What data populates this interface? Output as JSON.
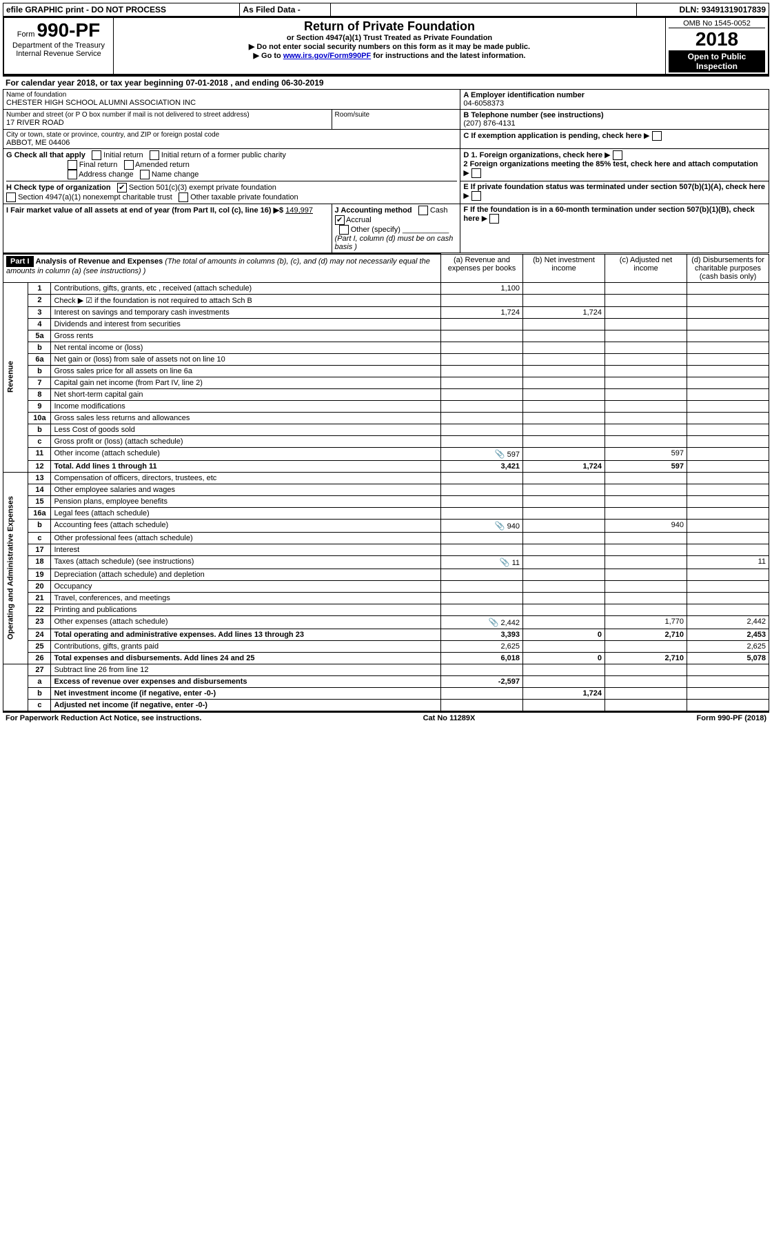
{
  "topbar": {
    "efile": "efile GRAPHIC print - DO NOT PROCESS",
    "asfiled": "As Filed Data -",
    "dln_label": "DLN:",
    "dln": "93491319017839"
  },
  "header": {
    "form_prefix": "Form",
    "form_number": "990-PF",
    "dept": "Department of the Treasury",
    "irs": "Internal Revenue Service",
    "title": "Return of Private Foundation",
    "subtitle": "or Section 4947(a)(1) Trust Treated as Private Foundation",
    "warn1": "▶ Do not enter social security numbers on this form as it may be made public.",
    "warn2_pre": "▶ Go to ",
    "warn2_link": "www.irs.gov/Form990PF",
    "warn2_post": " for instructions and the latest information.",
    "omb": "OMB No 1545-0052",
    "year": "2018",
    "open": "Open to Public Inspection"
  },
  "calyear": {
    "text_a": "For calendar year 2018, or tax year beginning ",
    "begin": "07-01-2018",
    "text_b": " , and ending ",
    "end": "06-30-2019"
  },
  "entity": {
    "name_label": "Name of foundation",
    "name": "CHESTER HIGH SCHOOL ALUMNI ASSOCIATION INC",
    "addr_label": "Number and street (or P O  box number if mail is not delivered to street address)",
    "addr": "17 RIVER ROAD",
    "room_label": "Room/suite",
    "city_label": "City or town, state or province, country, and ZIP or foreign postal code",
    "city": "ABBOT, ME  04406",
    "a_label": "A Employer identification number",
    "ein": "04-6058373",
    "b_label": "B Telephone number (see instructions)",
    "phone": "(207) 876-4131",
    "c_label": "C If exemption application is pending, check here"
  },
  "boxG": {
    "label": "G Check all that apply",
    "o1": "Initial return",
    "o2": "Initial return of a former public charity",
    "o3": "Final return",
    "o4": "Amended return",
    "o5": "Address change",
    "o6": "Name change"
  },
  "boxH": {
    "label": "H Check type of organization",
    "o1": "Section 501(c)(3) exempt private foundation",
    "o2": "Section 4947(a)(1) nonexempt charitable trust",
    "o3": "Other taxable private foundation"
  },
  "boxD": {
    "d1": "D 1. Foreign organizations, check here",
    "d2": "2  Foreign organizations meeting the 85% test, check here and attach computation",
    "e": "E  If private foundation status was terminated under section 507(b)(1)(A), check here",
    "f": "F  If the foundation is in a 60-month termination under section 507(b)(1)(B), check here"
  },
  "boxI": {
    "label": "I Fair market value of all assets at end of year (from Part II, col  (c), line 16)  ▶$ ",
    "val": "149,997"
  },
  "boxJ": {
    "label": "J Accounting method",
    "cash": "Cash",
    "accrual": "Accrual",
    "other": "Other (specify)",
    "note": "(Part I, column (d) must be on cash basis )"
  },
  "part1": {
    "tag": "Part I",
    "title": "Analysis of Revenue and Expenses",
    "note": " (The total of amounts in columns (b), (c), and (d) may not necessarily equal the amounts in column (a) (see instructions) )",
    "colA": "(a)   Revenue and expenses per books",
    "colB": "(b)   Net investment income",
    "colC": "(c)   Adjusted net income",
    "colD": "(d)   Disbursements for charitable purposes (cash basis only)"
  },
  "rev_label": "Revenue",
  "exp_label": "Operating and Administrative Expenses",
  "rows": {
    "r1": {
      "n": "1",
      "d": "Contributions, gifts, grants, etc , received (attach schedule)",
      "a": "1,100"
    },
    "r2": {
      "n": "2",
      "d": "Check ▶ ☑ if the foundation is not required to attach Sch  B"
    },
    "r3": {
      "n": "3",
      "d": "Interest on savings and temporary cash investments",
      "a": "1,724",
      "b": "1,724"
    },
    "r4": {
      "n": "4",
      "d": "Dividends and interest from securities"
    },
    "r5a": {
      "n": "5a",
      "d": "Gross rents"
    },
    "r5b": {
      "n": "b",
      "d": "Net rental income or (loss)"
    },
    "r6a": {
      "n": "6a",
      "d": "Net gain or (loss) from sale of assets not on line 10"
    },
    "r6b": {
      "n": "b",
      "d": "Gross sales price for all assets on line 6a"
    },
    "r7": {
      "n": "7",
      "d": "Capital gain net income (from Part IV, line 2)"
    },
    "r8": {
      "n": "8",
      "d": "Net short-term capital gain"
    },
    "r9": {
      "n": "9",
      "d": "Income modifications"
    },
    "r10a": {
      "n": "10a",
      "d": "Gross sales less returns and allowances"
    },
    "r10b": {
      "n": "b",
      "d": "Less  Cost of goods sold"
    },
    "r10c": {
      "n": "c",
      "d": "Gross profit or (loss) (attach schedule)"
    },
    "r11": {
      "n": "11",
      "d": "Other income (attach schedule)",
      "a": "597",
      "c": "597",
      "clip": true
    },
    "r12": {
      "n": "12",
      "d": "Total. Add lines 1 through 11",
      "a": "3,421",
      "b": "1,724",
      "c": "597",
      "bold": true
    },
    "r13": {
      "n": "13",
      "d": "Compensation of officers, directors, trustees, etc"
    },
    "r14": {
      "n": "14",
      "d": "Other employee salaries and wages"
    },
    "r15": {
      "n": "15",
      "d": "Pension plans, employee benefits"
    },
    "r16a": {
      "n": "16a",
      "d": "Legal fees (attach schedule)"
    },
    "r16b": {
      "n": "b",
      "d": "Accounting fees (attach schedule)",
      "a": "940",
      "c": "940",
      "clip": true
    },
    "r16c": {
      "n": "c",
      "d": "Other professional fees (attach schedule)"
    },
    "r17": {
      "n": "17",
      "d": "Interest"
    },
    "r18": {
      "n": "18",
      "d": "Taxes (attach schedule) (see instructions)",
      "a": "11",
      "dd": "11",
      "clip": true
    },
    "r19": {
      "n": "19",
      "d": "Depreciation (attach schedule) and depletion"
    },
    "r20": {
      "n": "20",
      "d": "Occupancy"
    },
    "r21": {
      "n": "21",
      "d": "Travel, conferences, and meetings"
    },
    "r22": {
      "n": "22",
      "d": "Printing and publications"
    },
    "r23": {
      "n": "23",
      "d": "Other expenses (attach schedule)",
      "a": "2,442",
      "c": "1,770",
      "dd": "2,442",
      "clip": true
    },
    "r24": {
      "n": "24",
      "d": "Total operating and administrative expenses. Add lines 13 through 23",
      "a": "3,393",
      "b": "0",
      "c": "2,710",
      "dd": "2,453",
      "bold": true
    },
    "r25": {
      "n": "25",
      "d": "Contributions, gifts, grants paid",
      "a": "2,625",
      "dd": "2,625"
    },
    "r26": {
      "n": "26",
      "d": "Total expenses and disbursements. Add lines 24 and 25",
      "a": "6,018",
      "b": "0",
      "c": "2,710",
      "dd": "5,078",
      "bold": true
    },
    "r27": {
      "n": "27",
      "d": "Subtract line 26 from line 12"
    },
    "r27a": {
      "n": "a",
      "d": "Excess of revenue over expenses and disbursements",
      "a": "-2,597",
      "bold": true
    },
    "r27b": {
      "n": "b",
      "d": "Net investment income (if negative, enter -0-)",
      "b": "1,724",
      "bold": true
    },
    "r27c": {
      "n": "c",
      "d": "Adjusted net income (if negative, enter -0-)",
      "bold": true
    }
  },
  "footer": {
    "left": "For Paperwork Reduction Act Notice, see instructions.",
    "mid": "Cat  No  11289X",
    "right": "Form 990-PF (2018)"
  }
}
